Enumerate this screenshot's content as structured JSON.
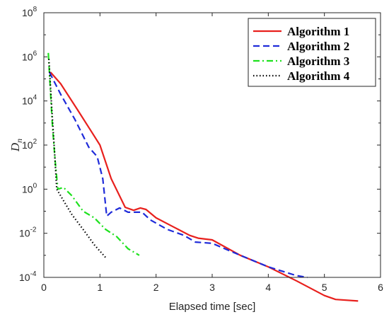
{
  "chart_data": {
    "type": "line",
    "xlabel": "Elapsed time [sec]",
    "ylabel_main": "D",
    "ylabel_sub": "n",
    "xlim": [
      0,
      6
    ],
    "ylim_exp": [
      -4,
      8
    ],
    "y_log_base": 10,
    "x_ticks": [
      "0",
      "1",
      "2",
      "3",
      "4",
      "5",
      "6"
    ],
    "y_tick_exponents": [
      "-4",
      "-2",
      "0",
      "2",
      "4",
      "6",
      "8"
    ],
    "y_tick_base": "10",
    "grid": false,
    "legend_position": "top-right",
    "series": [
      {
        "name": "Algorithm 1",
        "color": "#e8201d",
        "dash": "solid",
        "points": [
          [
            0.12,
            200000
          ],
          [
            0.3,
            60000
          ],
          [
            0.6,
            4000
          ],
          [
            0.85,
            400
          ],
          [
            1.0,
            100
          ],
          [
            1.2,
            3
          ],
          [
            1.45,
            0.15
          ],
          [
            1.6,
            0.11
          ],
          [
            1.72,
            0.14
          ],
          [
            1.82,
            0.12
          ],
          [
            2.0,
            0.05
          ],
          [
            2.3,
            0.02
          ],
          [
            2.6,
            0.008
          ],
          [
            2.75,
            0.006
          ],
          [
            3.0,
            0.005
          ],
          [
            3.5,
            0.001
          ],
          [
            4.0,
            0.0003
          ],
          [
            4.5,
            7e-05
          ],
          [
            5.0,
            1.5e-05
          ],
          [
            5.2,
            1e-05
          ],
          [
            5.6,
            8.5e-06
          ]
        ]
      },
      {
        "name": "Algorithm 2",
        "color": "#1f2bd9",
        "dash": "dashed",
        "points": [
          [
            0.1,
            200000
          ],
          [
            0.3,
            20000
          ],
          [
            0.55,
            1500
          ],
          [
            0.8,
            80
          ],
          [
            0.95,
            30
          ],
          [
            1.05,
            3
          ],
          [
            1.12,
            0.06
          ],
          [
            1.2,
            0.09
          ],
          [
            1.35,
            0.14
          ],
          [
            1.5,
            0.09
          ],
          [
            1.75,
            0.09
          ],
          [
            1.9,
            0.04
          ],
          [
            2.2,
            0.015
          ],
          [
            2.5,
            0.008
          ],
          [
            2.7,
            0.004
          ],
          [
            3.0,
            0.0035
          ],
          [
            3.5,
            0.001
          ],
          [
            4.0,
            0.0003
          ],
          [
            4.5,
            0.00012
          ],
          [
            4.7,
            0.0001
          ]
        ]
      },
      {
        "name": "Algorithm 3",
        "color": "#1ee11e",
        "dash": "dashdot",
        "points": [
          [
            0.08,
            1500000
          ],
          [
            0.15,
            1000
          ],
          [
            0.2,
            20
          ],
          [
            0.25,
            1
          ],
          [
            0.35,
            1.2
          ],
          [
            0.5,
            0.5
          ],
          [
            0.7,
            0.1
          ],
          [
            0.9,
            0.05
          ],
          [
            1.1,
            0.015
          ],
          [
            1.3,
            0.007
          ],
          [
            1.5,
            0.002
          ],
          [
            1.7,
            0.001
          ]
        ]
      },
      {
        "name": "Algorithm 4",
        "color": "#000000",
        "dash": "dotted",
        "points": [
          [
            0.09,
            800000
          ],
          [
            0.14,
            5000
          ],
          [
            0.19,
            50
          ],
          [
            0.23,
            1
          ],
          [
            0.35,
            0.3
          ],
          [
            0.5,
            0.07
          ],
          [
            0.7,
            0.015
          ],
          [
            0.9,
            0.003
          ],
          [
            1.1,
            0.0008
          ]
        ]
      }
    ]
  }
}
